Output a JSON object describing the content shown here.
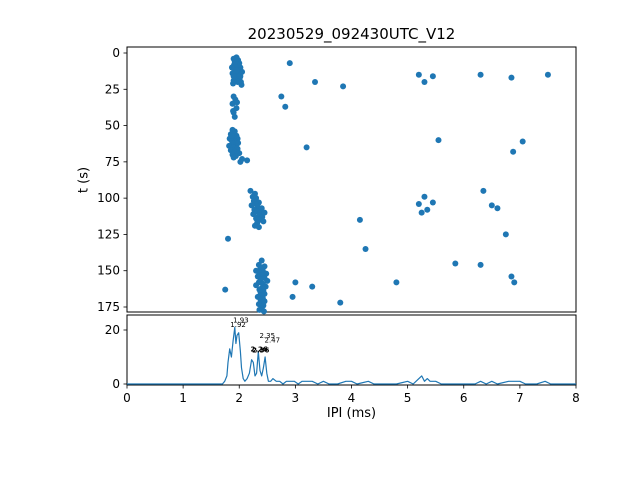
{
  "figure": {
    "title": "20230529_092430UTC_V12",
    "xlabel": "IPI (ms)",
    "ylabel": "t (s)"
  },
  "chart_data": [
    {
      "type": "scatter",
      "title": "20230529_092430UTC_V12",
      "xlabel": "IPI (ms)",
      "ylabel": "t (s)",
      "xlim": [
        0,
        8
      ],
      "ylim": [
        180,
        -4
      ],
      "y_inverted": true,
      "yticks": [
        0,
        25,
        50,
        75,
        100,
        125,
        150,
        175
      ],
      "marker_color": "#1f77b4",
      "points": [
        [
          1.95,
          3
        ],
        [
          1.9,
          4
        ],
        [
          1.98,
          5
        ],
        [
          1.92,
          6
        ],
        [
          2.0,
          7
        ],
        [
          1.96,
          8
        ],
        [
          1.9,
          9
        ],
        [
          2.02,
          10
        ],
        [
          1.94,
          10
        ],
        [
          1.97,
          11
        ],
        [
          2.0,
          12
        ],
        [
          1.92,
          13
        ],
        [
          1.95,
          14
        ],
        [
          1.99,
          15
        ],
        [
          1.93,
          15
        ],
        [
          1.96,
          16
        ],
        [
          2.01,
          17
        ],
        [
          1.94,
          18
        ],
        [
          1.9,
          19
        ],
        [
          1.97,
          20
        ],
        [
          2.03,
          20
        ],
        [
          1.89,
          21
        ],
        [
          2.04,
          22
        ],
        [
          1.91,
          8
        ],
        [
          1.98,
          17
        ],
        [
          1.95,
          12
        ],
        [
          2.0,
          19
        ],
        [
          1.93,
          6
        ],
        [
          1.88,
          14
        ],
        [
          2.02,
          16
        ],
        [
          1.96,
          4
        ],
        [
          1.9,
          16
        ],
        [
          2.05,
          13
        ],
        [
          1.87,
          10
        ],
        [
          2.9,
          7
        ],
        [
          3.35,
          20
        ],
        [
          3.85,
          23
        ],
        [
          5.2,
          15
        ],
        [
          5.3,
          20
        ],
        [
          5.45,
          16
        ],
        [
          6.3,
          15
        ],
        [
          6.85,
          17
        ],
        [
          7.5,
          15
        ],
        [
          1.9,
          30
        ],
        [
          1.93,
          32
        ],
        [
          1.88,
          35
        ],
        [
          1.95,
          38
        ],
        [
          1.9,
          41
        ],
        [
          1.92,
          44
        ],
        [
          1.96,
          34
        ],
        [
          1.89,
          40
        ],
        [
          2.75,
          30
        ],
        [
          2.82,
          37
        ],
        [
          1.88,
          53
        ],
        [
          1.92,
          54
        ],
        [
          1.85,
          56
        ],
        [
          1.95,
          57
        ],
        [
          1.9,
          58
        ],
        [
          1.83,
          59
        ],
        [
          1.97,
          59
        ],
        [
          1.86,
          60
        ],
        [
          1.93,
          61
        ],
        [
          1.88,
          62
        ],
        [
          1.95,
          63
        ],
        [
          1.82,
          64
        ],
        [
          1.9,
          65
        ],
        [
          1.97,
          66
        ],
        [
          1.85,
          67
        ],
        [
          1.92,
          68
        ],
        [
          2.0,
          69
        ],
        [
          1.88,
          70
        ],
        [
          1.94,
          71
        ],
        [
          2.05,
          73
        ],
        [
          2.14,
          74
        ],
        [
          1.9,
          72
        ],
        [
          1.86,
          57
        ],
        [
          1.98,
          62
        ],
        [
          2.02,
          75
        ],
        [
          3.2,
          65
        ],
        [
          5.55,
          60
        ],
        [
          6.88,
          68
        ],
        [
          7.05,
          61
        ],
        [
          2.2,
          95
        ],
        [
          2.28,
          97
        ],
        [
          2.24,
          99
        ],
        [
          2.3,
          100
        ],
        [
          2.26,
          102
        ],
        [
          2.35,
          103
        ],
        [
          2.3,
          104
        ],
        [
          2.22,
          105
        ],
        [
          2.33,
          106
        ],
        [
          2.4,
          107
        ],
        [
          2.27,
          108
        ],
        [
          2.32,
          109
        ],
        [
          2.38,
          110
        ],
        [
          2.25,
          111
        ],
        [
          2.35,
          112
        ],
        [
          2.41,
          113
        ],
        [
          2.3,
          114
        ],
        [
          2.36,
          115
        ],
        [
          2.32,
          117
        ],
        [
          2.45,
          110
        ],
        [
          2.43,
          116
        ],
        [
          2.28,
          119
        ],
        [
          2.35,
          120
        ],
        [
          4.15,
          115
        ],
        [
          5.2,
          104
        ],
        [
          5.3,
          99
        ],
        [
          5.35,
          108
        ],
        [
          5.45,
          103
        ],
        [
          6.35,
          95
        ],
        [
          6.5,
          105
        ],
        [
          6.6,
          107
        ],
        [
          6.75,
          125
        ],
        [
          5.25,
          110
        ],
        [
          1.8,
          128
        ],
        [
          4.25,
          135
        ],
        [
          2.4,
          143
        ],
        [
          2.35,
          146
        ],
        [
          2.45,
          147
        ],
        [
          2.38,
          148
        ],
        [
          2.3,
          150
        ],
        [
          2.42,
          150
        ],
        [
          2.35,
          151
        ],
        [
          2.48,
          152
        ],
        [
          2.4,
          153
        ],
        [
          2.33,
          154
        ],
        [
          2.45,
          155
        ],
        [
          2.38,
          156
        ],
        [
          2.5,
          157
        ],
        [
          2.35,
          158
        ],
        [
          2.42,
          159
        ],
        [
          2.3,
          160
        ],
        [
          2.47,
          161
        ],
        [
          2.4,
          162
        ],
        [
          2.36,
          163
        ],
        [
          2.43,
          164
        ],
        [
          2.38,
          165
        ],
        [
          2.45,
          166
        ],
        [
          2.4,
          167
        ],
        [
          2.33,
          168
        ],
        [
          2.42,
          169
        ],
        [
          2.38,
          170
        ],
        [
          2.45,
          171
        ],
        [
          2.4,
          172
        ],
        [
          2.35,
          173
        ],
        [
          2.43,
          174
        ],
        [
          2.4,
          176
        ],
        [
          2.36,
          177
        ],
        [
          2.44,
          178
        ],
        [
          1.75,
          163
        ],
        [
          3.0,
          158
        ],
        [
          3.3,
          161
        ],
        [
          3.8,
          172
        ],
        [
          4.8,
          158
        ],
        [
          5.85,
          145
        ],
        [
          6.3,
          146
        ],
        [
          6.85,
          154
        ],
        [
          6.9,
          158
        ],
        [
          2.95,
          168
        ]
      ]
    },
    {
      "type": "line",
      "xlabel": "IPI (ms)",
      "xlim": [
        0,
        8
      ],
      "ylim": [
        0,
        25.5
      ],
      "yticks": [
        0,
        20
      ],
      "xticks": [
        0,
        1,
        2,
        3,
        4,
        5,
        6,
        7,
        8
      ],
      "line_color": "#1f77b4",
      "x": [
        0,
        1.7,
        1.74,
        1.78,
        1.8,
        1.83,
        1.86,
        1.89,
        1.92,
        1.94,
        1.96,
        1.99,
        2.02,
        2.04,
        2.07,
        2.1,
        2.14,
        2.18,
        2.22,
        2.25,
        2.28,
        2.31,
        2.34,
        2.37,
        2.4,
        2.43,
        2.46,
        2.49,
        2.52,
        2.56,
        2.6,
        2.66,
        2.72,
        2.78,
        2.84,
        2.9,
        2.98,
        3.05,
        3.12,
        3.2,
        3.3,
        3.4,
        3.5,
        3.6,
        3.75,
        3.9,
        4.0,
        4.1,
        4.3,
        4.4,
        4.6,
        4.8,
        5.0,
        5.1,
        5.25,
        5.3,
        5.35,
        5.4,
        5.5,
        5.6,
        5.8,
        6.0,
        6.2,
        6.3,
        6.4,
        6.5,
        6.6,
        6.8,
        6.9,
        7.0,
        7.1,
        7.3,
        7.45,
        7.55,
        8.0
      ],
      "counts": [
        0,
        0,
        1,
        3,
        8,
        13,
        10,
        16,
        21,
        15,
        18,
        19,
        12,
        6,
        2,
        1,
        2,
        4,
        9,
        8,
        3,
        4,
        12,
        5,
        3,
        6,
        10,
        4,
        1,
        1,
        2,
        1,
        1,
        0,
        1,
        1,
        1,
        0,
        1,
        1,
        1,
        0,
        1,
        0,
        0,
        1,
        1,
        0,
        1,
        0,
        0,
        0,
        1,
        0,
        3,
        1,
        2,
        1,
        1,
        0,
        0,
        0,
        0,
        1,
        0,
        1,
        0,
        1,
        1,
        1,
        0,
        0,
        1,
        0,
        0
      ],
      "annotations": [
        {
          "label": "1.93",
          "x": 1.89,
          "y": 22.8,
          "bold": false
        },
        {
          "label": "1.92",
          "x": 1.84,
          "y": 21.2,
          "bold": false
        },
        {
          "label": "2.35",
          "x": 2.36,
          "y": 17.0,
          "bold": false
        },
        {
          "label": "2.47",
          "x": 2.45,
          "y": 15.3,
          "bold": false
        },
        {
          "label": "2.26",
          "x": 2.2,
          "y": 12.0,
          "bold": true
        },
        {
          "label": "2.36",
          "x": 2.23,
          "y": 11.6,
          "bold": true
        }
      ]
    }
  ]
}
